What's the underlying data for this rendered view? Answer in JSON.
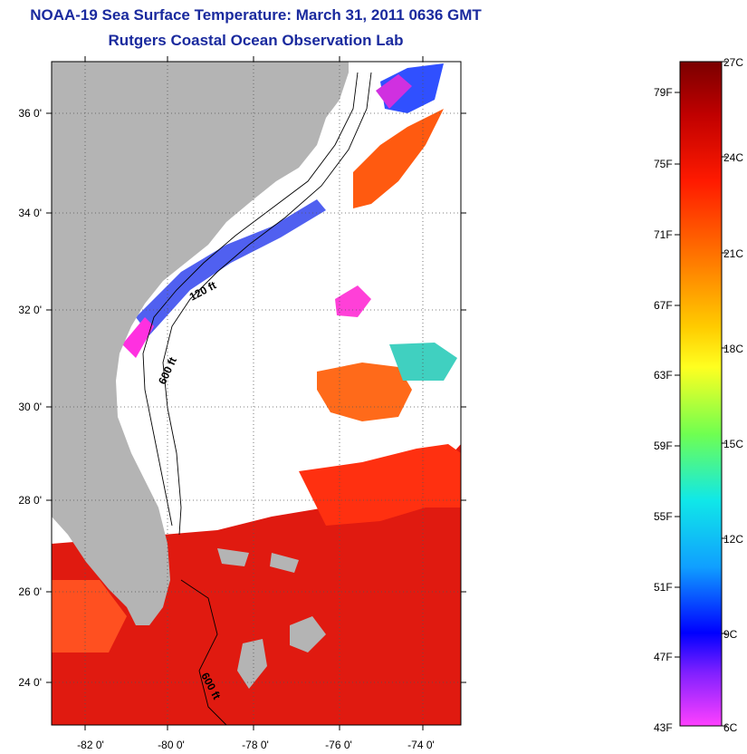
{
  "title": "NOAA-19 Sea Surface Temperature:  March 31, 2011 0636 GMT",
  "subtitle": "Rutgers Coastal Ocean Observation Lab",
  "map": {
    "lat_labels": [
      "36 0'",
      "34 0'",
      "32 0'",
      "30 0'",
      "28 0'",
      "26 0'",
      "24 0'"
    ],
    "lon_labels": [
      "-82 0'",
      "-80 0'",
      "-78 0'",
      "-76 0'",
      "-74 0'"
    ],
    "contour_labels": [
      "120 ft",
      "600 ft",
      "600 ft"
    ],
    "colors": {
      "land": "#b4b4b4",
      "warm": "#e01010",
      "cool": "#ff7a1a",
      "cold": "#3050ff",
      "coldest": "#ff30e0"
    }
  },
  "colorbar": {
    "fahrenheit_labels": [
      "79F",
      "75F",
      "71F",
      "67F",
      "63F",
      "59F",
      "55F",
      "51F",
      "47F",
      "43F"
    ],
    "celsius_labels": [
      "27C",
      "24C",
      "21C",
      "18C",
      "15C",
      "12C",
      "9C",
      "6C"
    ],
    "range_c": [
      6,
      27
    ],
    "range_f": [
      43,
      79
    ]
  }
}
